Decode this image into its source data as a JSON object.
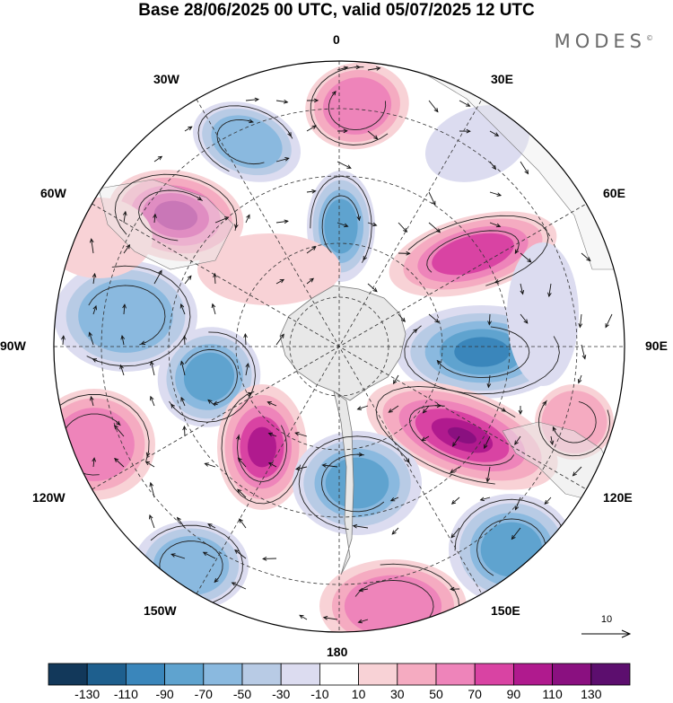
{
  "header": {
    "title": "Base 28/06/2025 00 UTC, valid 05/07/2025 12 UTC",
    "brand": "MODES",
    "brand_mark": "©"
  },
  "map": {
    "projection": "south polar stereographic",
    "longitude_labels": {
      "top": "0",
      "top_right": "30E",
      "right_upper": "60E",
      "right": "90E",
      "right_lower": "120E",
      "bottom_right": "150E",
      "bottom": "180",
      "bottom_left": "150W",
      "left_lower": "120W",
      "left": "90W",
      "left_upper": "60W",
      "top_left": "30W"
    },
    "reference_vector": {
      "label": "10",
      "value": 10
    }
  },
  "colorbar": {
    "ticks": [
      "-130",
      "-110",
      "-90",
      "-70",
      "-50",
      "-30",
      "-10",
      "10",
      "30",
      "50",
      "70",
      "90",
      "110",
      "130"
    ],
    "colors": [
      "#12385a",
      "#1e5f8e",
      "#3a86bb",
      "#5fa3cf",
      "#8ab9df",
      "#b8cbe5",
      "#dcdcf0",
      "#ffffff",
      "#f8d2d6",
      "#f5abc1",
      "#ee84ba",
      "#d943a3",
      "#b01a8e",
      "#8a1080",
      "#5c0e6e"
    ],
    "land_color": "#e8e8e8",
    "coast_color": "#7a7a7a"
  }
}
